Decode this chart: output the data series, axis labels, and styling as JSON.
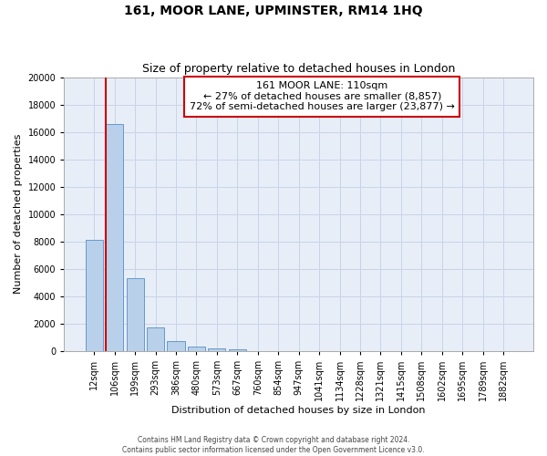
{
  "title": "161, MOOR LANE, UPMINSTER, RM14 1HQ",
  "subtitle": "Size of property relative to detached houses in London",
  "xlabel": "Distribution of detached houses by size in London",
  "ylabel": "Number of detached properties",
  "categories": [
    "12sqm",
    "106sqm",
    "199sqm",
    "293sqm",
    "386sqm",
    "480sqm",
    "573sqm",
    "667sqm",
    "760sqm",
    "854sqm",
    "947sqm",
    "1041sqm",
    "1134sqm",
    "1228sqm",
    "1321sqm",
    "1415sqm",
    "1508sqm",
    "1602sqm",
    "1695sqm",
    "1789sqm",
    "1882sqm"
  ],
  "values": [
    8100,
    16600,
    5300,
    1750,
    700,
    300,
    170,
    100,
    0,
    0,
    0,
    0,
    0,
    0,
    0,
    0,
    0,
    0,
    0,
    0,
    0
  ],
  "bar_color": "#b8d0ea",
  "bar_edgecolor": "#6699cc",
  "vline_x_index": 1,
  "vline_color": "#cc0000",
  "annotation_line1": "161 MOOR LANE: 110sqm",
  "annotation_line2": "← 27% of detached houses are smaller (8,857)",
  "annotation_line3": "72% of semi-detached houses are larger (23,877) →",
  "annotation_box_color": "#ffffff",
  "annotation_box_edgecolor": "#cc0000",
  "ylim": [
    0,
    20000
  ],
  "yticks": [
    0,
    2000,
    4000,
    6000,
    8000,
    10000,
    12000,
    14000,
    16000,
    18000,
    20000
  ],
  "grid_color": "#c8d4e8",
  "background_color": "#e8eef8",
  "footer_line1": "Contains HM Land Registry data © Crown copyright and database right 2024.",
  "footer_line2": "Contains public sector information licensed under the Open Government Licence v3.0.",
  "title_fontsize": 10,
  "subtitle_fontsize": 9,
  "tick_fontsize": 7,
  "ylabel_fontsize": 8,
  "xlabel_fontsize": 8,
  "annotation_fontsize": 8
}
